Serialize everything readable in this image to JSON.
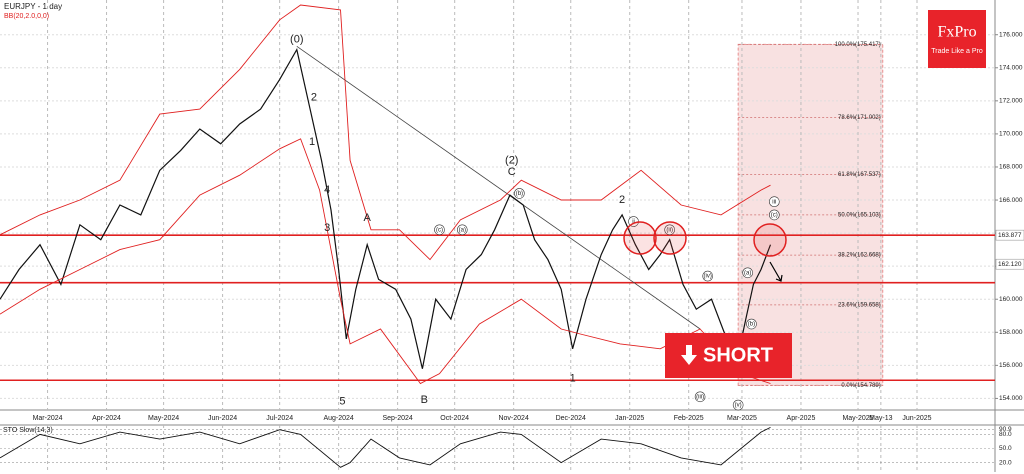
{
  "chart_data": {
    "type": "line",
    "title": "EURJPY - 1 day",
    "subtitle": "BB(20,2.0,0,0)",
    "xlim": [
      "2024-02-05",
      "2025-07-12"
    ],
    "xticks": [
      {
        "value": "2024-03-01",
        "label": "Mar-2024"
      },
      {
        "value": "2024-04-01",
        "label": "Apr-2024"
      },
      {
        "value": "2024-05-01",
        "label": "May-2024"
      },
      {
        "value": "2024-06-01",
        "label": "Jun-2024"
      },
      {
        "value": "2024-07-01",
        "label": "Jul-2024"
      },
      {
        "value": "2024-08-01",
        "label": "Aug-2024"
      },
      {
        "value": "2024-09-01",
        "label": "Sep-2024"
      },
      {
        "value": "2024-10-01",
        "label": "Oct-2024"
      },
      {
        "value": "2024-11-01",
        "label": "Nov-2024"
      },
      {
        "value": "2024-12-01",
        "label": "Dec-2024"
      },
      {
        "value": "2025-01-01",
        "label": "Jan-2025"
      },
      {
        "value": "2025-02-01",
        "label": "Feb-2025"
      },
      {
        "value": "2025-03-01",
        "label": "Mar-2025"
      },
      {
        "value": "2025-04-01",
        "label": "Apr-2025"
      },
      {
        "value": "2025-05-01",
        "label": "May-2025"
      },
      {
        "value": "2025-05-13",
        "label": "May-13"
      },
      {
        "value": "2025-06-01",
        "label": "Jun-2025"
      }
    ],
    "ylim": [
      153.3,
      178.1
    ],
    "yticks": [
      {
        "value": 154,
        "label": "154.000"
      },
      {
        "value": 156,
        "label": "156.000"
      },
      {
        "value": 158,
        "label": "158.000"
      },
      {
        "value": 160,
        "label": "160.000"
      },
      {
        "value": 162,
        "label": "162.000"
      },
      {
        "value": 164,
        "label": "164.000"
      },
      {
        "value": 166,
        "label": "166.000"
      },
      {
        "value": 168,
        "label": "168.000"
      },
      {
        "value": 170,
        "label": "170.000"
      },
      {
        "value": 172,
        "label": "172.000"
      },
      {
        "value": 174,
        "label": "174.000"
      },
      {
        "value": 176,
        "label": "176.000"
      }
    ],
    "grid": true,
    "series": [
      {
        "name": "EURJPY",
        "color": "#111111",
        "x": [
          "2024-02-05",
          "2024-02-15",
          "2024-02-26",
          "2024-03-08",
          "2024-03-18",
          "2024-03-29",
          "2024-04-08",
          "2024-04-19",
          "2024-04-29",
          "2024-05-10",
          "2024-05-20",
          "2024-05-31",
          "2024-06-10",
          "2024-06-21",
          "2024-07-01",
          "2024-07-10",
          "2024-07-17",
          "2024-07-23",
          "2024-07-28",
          "2024-08-01",
          "2024-08-05",
          "2024-08-10",
          "2024-08-16",
          "2024-08-22",
          "2024-08-31",
          "2024-09-08",
          "2024-09-14",
          "2024-09-21",
          "2024-09-29",
          "2024-10-07",
          "2024-10-15",
          "2024-10-22",
          "2024-10-30",
          "2024-11-06",
          "2024-11-12",
          "2024-11-19",
          "2024-11-26",
          "2024-12-02",
          "2024-12-09",
          "2024-12-17",
          "2024-12-23",
          "2024-12-28",
          "2025-01-04",
          "2025-01-11",
          "2025-01-17",
          "2025-01-22",
          "2025-01-29",
          "2025-02-05",
          "2025-02-13",
          "2025-02-19",
          "2025-02-26",
          "2025-03-03",
          "2025-03-07",
          "2025-03-11",
          "2025-03-16"
        ],
        "values": [
          160.0,
          161.8,
          163.3,
          160.9,
          164.5,
          163.6,
          165.7,
          165.1,
          167.8,
          169.0,
          170.3,
          169.4,
          170.6,
          171.5,
          173.3,
          175.1,
          171.5,
          168.4,
          165.4,
          161.8,
          157.6,
          160.6,
          163.3,
          161.2,
          160.6,
          158.8,
          155.8,
          160.0,
          158.8,
          161.8,
          162.7,
          164.2,
          166.3,
          165.7,
          163.6,
          162.4,
          160.6,
          157.0,
          160.0,
          162.7,
          164.2,
          165.1,
          163.3,
          161.8,
          162.7,
          163.6,
          160.9,
          159.4,
          160.0,
          158.2,
          156.1,
          158.8,
          160.9,
          161.8,
          163.3
        ]
      },
      {
        "name": "BB upper",
        "color": "#e02020",
        "x": [
          "2024-02-05",
          "2024-02-26",
          "2024-03-18",
          "2024-04-08",
          "2024-04-29",
          "2024-05-20",
          "2024-06-10",
          "2024-07-01",
          "2024-07-12",
          "2024-08-02",
          "2024-08-07",
          "2024-08-18",
          "2024-09-02",
          "2024-09-18",
          "2024-10-04",
          "2024-10-25",
          "2024-11-05",
          "2024-11-26",
          "2024-12-17",
          "2025-01-07",
          "2025-01-28",
          "2025-02-18",
          "2025-03-11",
          "2025-03-16"
        ],
        "values": [
          163.9,
          165.1,
          166.0,
          167.2,
          171.2,
          171.5,
          173.9,
          176.9,
          177.8,
          177.5,
          168.4,
          164.2,
          164.2,
          162.4,
          164.8,
          166.0,
          167.2,
          166.0,
          166.0,
          167.8,
          165.7,
          165.1,
          166.6,
          166.9
        ]
      },
      {
        "name": "BB lower",
        "color": "#e02020",
        "x": [
          "2024-02-05",
          "2024-02-26",
          "2024-03-18",
          "2024-04-08",
          "2024-04-29",
          "2024-05-20",
          "2024-06-10",
          "2024-07-01",
          "2024-07-12",
          "2024-07-22",
          "2024-08-02",
          "2024-08-07",
          "2024-08-23",
          "2024-09-13",
          "2024-09-23",
          "2024-10-14",
          "2024-11-05",
          "2024-11-26",
          "2024-12-06",
          "2024-12-27",
          "2025-01-17",
          "2025-02-07",
          "2025-02-28",
          "2025-03-16"
        ],
        "values": [
          159.1,
          160.6,
          161.8,
          163.0,
          163.6,
          166.3,
          167.5,
          169.1,
          169.7,
          166.6,
          160.0,
          157.3,
          158.2,
          154.9,
          155.5,
          158.5,
          160.0,
          158.2,
          157.9,
          157.3,
          157.0,
          158.2,
          155.5,
          154.9
        ]
      }
    ],
    "trendline": {
      "x": [
        "2024-07-10",
        "2025-02-07"
      ],
      "values": [
        175.3,
        158.2
      ]
    },
    "levels": [
      163.877,
      161.0,
      155.1
    ],
    "level_color": "#e02020",
    "price_labels": [
      {
        "value": 163.877,
        "label": "163.877"
      },
      {
        "value": 162.12,
        "label": "162.120"
      }
    ],
    "fibonacci": {
      "x": [
        "2025-02-27",
        "2025-05-14"
      ],
      "color": "#f2c4c4",
      "levels": [
        {
          "value": 175.417,
          "label": "100.0%(175.417)"
        },
        {
          "value": 171.002,
          "label": "78.6%(171.002)"
        },
        {
          "value": 167.537,
          "label": "61.8%(167.537)"
        },
        {
          "value": 165.103,
          "label": "50.0%(165.103)"
        },
        {
          "value": 162.668,
          "label": "38.2%(162.668)"
        },
        {
          "value": 159.658,
          "label": "23.6%(159.658)"
        },
        {
          "value": 154.789,
          "label": "0.0%(154.789)"
        }
      ]
    },
    "annotations": [
      {
        "text": "(0)",
        "x": "2024-07-10",
        "y": 175.7
      },
      {
        "text": "2",
        "x": "2024-07-19",
        "y": 172.2
      },
      {
        "text": "1",
        "x": "2024-07-18",
        "y": 169.5
      },
      {
        "text": "4",
        "x": "2024-07-26",
        "y": 166.6
      },
      {
        "text": "3",
        "x": "2024-07-26",
        "y": 164.3
      },
      {
        "text": "5",
        "x": "2024-08-03",
        "y": 153.8
      },
      {
        "text": "A",
        "x": "2024-08-16",
        "y": 164.9
      },
      {
        "text": "B",
        "x": "2024-09-15",
        "y": 153.9
      },
      {
        "text": "(2)",
        "x": "2024-10-31",
        "y": 168.4
      },
      {
        "text": "C",
        "x": "2024-10-31",
        "y": 167.7
      },
      {
        "text": "2",
        "x": "2024-12-28",
        "y": 166.0
      },
      {
        "text": "1",
        "x": "2024-12-02",
        "y": 155.2
      },
      {
        "text": "ii",
        "x": "2025-01-03",
        "y": 164.7,
        "circled": true
      },
      {
        "text": "(ii)",
        "x": "2025-01-22",
        "y": 164.2,
        "circled": true
      },
      {
        "text": "(iv)",
        "x": "2025-02-11",
        "y": 161.4,
        "circled": true
      },
      {
        "text": "(iii)",
        "x": "2025-02-07",
        "y": 154.1,
        "circled": true
      },
      {
        "text": "(v)",
        "x": "2025-02-27",
        "y": 153.6,
        "circled": true
      },
      {
        "text": "(a)",
        "x": "2025-03-04",
        "y": 161.6,
        "circled": true
      },
      {
        "text": "(b)",
        "x": "2025-03-06",
        "y": 158.5,
        "circled": true
      },
      {
        "text": "(c)",
        "x": "2025-03-18",
        "y": 165.1,
        "circled": true
      },
      {
        "text": "iii",
        "x": "2025-03-18",
        "y": 165.9,
        "circled": true
      },
      {
        "text": "(b)",
        "x": "2024-11-04",
        "y": 166.4,
        "circled": true
      },
      {
        "text": "(a)",
        "x": "2024-10-05",
        "y": 164.2,
        "circled": true
      },
      {
        "text": "(c)",
        "x": "2024-09-23",
        "y": 164.2,
        "circled": true
      }
    ],
    "oscillator": {
      "title": "STO Slow(14,3)",
      "ylim": [
        0,
        100
      ],
      "yticks": [
        {
          "value": 90.9,
          "label": "90.9"
        },
        {
          "value": 80,
          "label": "80.0"
        },
        {
          "value": 50,
          "label": "50.0"
        },
        {
          "value": 20,
          "label": "20.0"
        }
      ],
      "color": "#111111",
      "x": [
        "2024-02-05",
        "2024-02-26",
        "2024-03-18",
        "2024-04-08",
        "2024-04-29",
        "2024-05-20",
        "2024-06-10",
        "2024-07-01",
        "2024-07-12",
        "2024-08-02",
        "2024-08-07",
        "2024-08-18",
        "2024-09-02",
        "2024-09-18",
        "2024-10-04",
        "2024-10-25",
        "2024-11-05",
        "2024-11-26",
        "2024-12-17",
        "2025-01-07",
        "2025-01-28",
        "2025-02-18",
        "2025-03-11",
        "2025-03-16"
      ],
      "values": [
        30,
        80,
        60,
        85,
        70,
        85,
        60,
        90,
        80,
        10,
        20,
        70,
        30,
        15,
        60,
        85,
        80,
        20,
        70,
        60,
        30,
        15,
        85,
        95
      ]
    },
    "button": "SHORT",
    "logo": {
      "name": "FxPro",
      "tagline": "Trade Like a Pro"
    }
  }
}
